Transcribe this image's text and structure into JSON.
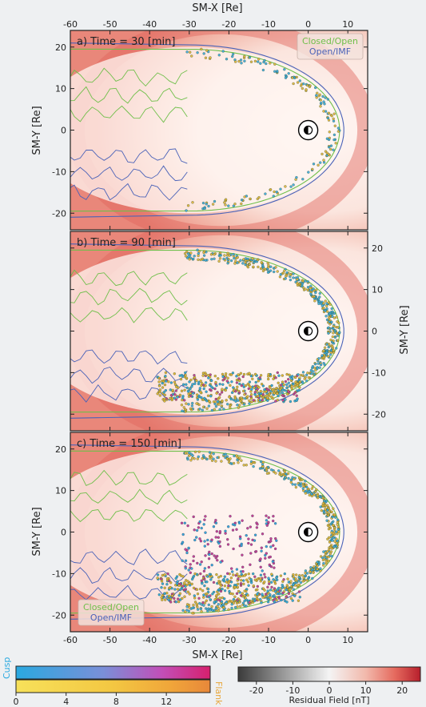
{
  "figure": {
    "top_xlabel": "SM-X [Re]",
    "bottom_xlabel": "SM-X [Re]",
    "ylabel": "SM-Y [Re]"
  },
  "chart_data": [
    {
      "type": "scatter",
      "panel": "a",
      "title": "a) Time = 30 [min]",
      "xlim": [
        -60,
        15
      ],
      "ylim": [
        -24,
        24
      ],
      "xticks": [
        -60,
        -50,
        -40,
        -30,
        -20,
        -10,
        0,
        10
      ],
      "yticks": [
        -20,
        -10,
        0,
        10,
        20
      ],
      "ytick_side": "left",
      "legend": {
        "position": "top-right",
        "entries": [
          "Closed/Open",
          "Open/IMF"
        ]
      },
      "point_density": "low"
    },
    {
      "type": "scatter",
      "panel": "b",
      "title": "b) Time = 90 [min]",
      "xlim": [
        -60,
        15
      ],
      "ylim": [
        -24,
        24
      ],
      "xticks": [
        -60,
        -50,
        -40,
        -30,
        -20,
        -10,
        0,
        10
      ],
      "yticks": [
        -20,
        -10,
        0,
        10,
        20
      ],
      "ytick_side": "right",
      "point_density": "high"
    },
    {
      "type": "scatter",
      "panel": "c",
      "title": "c) Time = 150 [min]",
      "xlim": [
        -60,
        15
      ],
      "ylim": [
        -24,
        24
      ],
      "xticks": [
        -60,
        -50,
        -40,
        -30,
        -20,
        -10,
        0,
        10
      ],
      "yticks": [
        -20,
        -10,
        0,
        10,
        20
      ],
      "ytick_side": "left",
      "legend": {
        "position": "bottom-left",
        "entries": [
          "Closed/Open",
          "Open/IMF"
        ]
      },
      "point_density": "high"
    }
  ],
  "colorbars": {
    "time": {
      "ticks": [
        0,
        4,
        8,
        12
      ],
      "top_label": "Cusp",
      "bottom_label": "Flank",
      "cusp_colors": [
        "#2aa9e0",
        "#7a8fd8",
        "#c24fb8",
        "#d6206e"
      ],
      "flank_colors": [
        "#f7e15a",
        "#f3c742",
        "#f0a53a",
        "#e8883a"
      ]
    },
    "residual": {
      "label": "Residual Field [nT]",
      "ticks": [
        -20,
        -10,
        0,
        10,
        20
      ],
      "range": [
        -25,
        25
      ],
      "colors": [
        "#3b3b3b",
        "#9a9a9a",
        "#f4f4f4",
        "#f2b9ac",
        "#e56a5e",
        "#b71f2c"
      ]
    }
  },
  "colors": {
    "closed_open": "#6fbf4a",
    "open_imf": "#4a62b8",
    "flank_point": "#e2b53a",
    "cusp_point": "#3aa9dc",
    "magenta_point": "#c84496"
  }
}
